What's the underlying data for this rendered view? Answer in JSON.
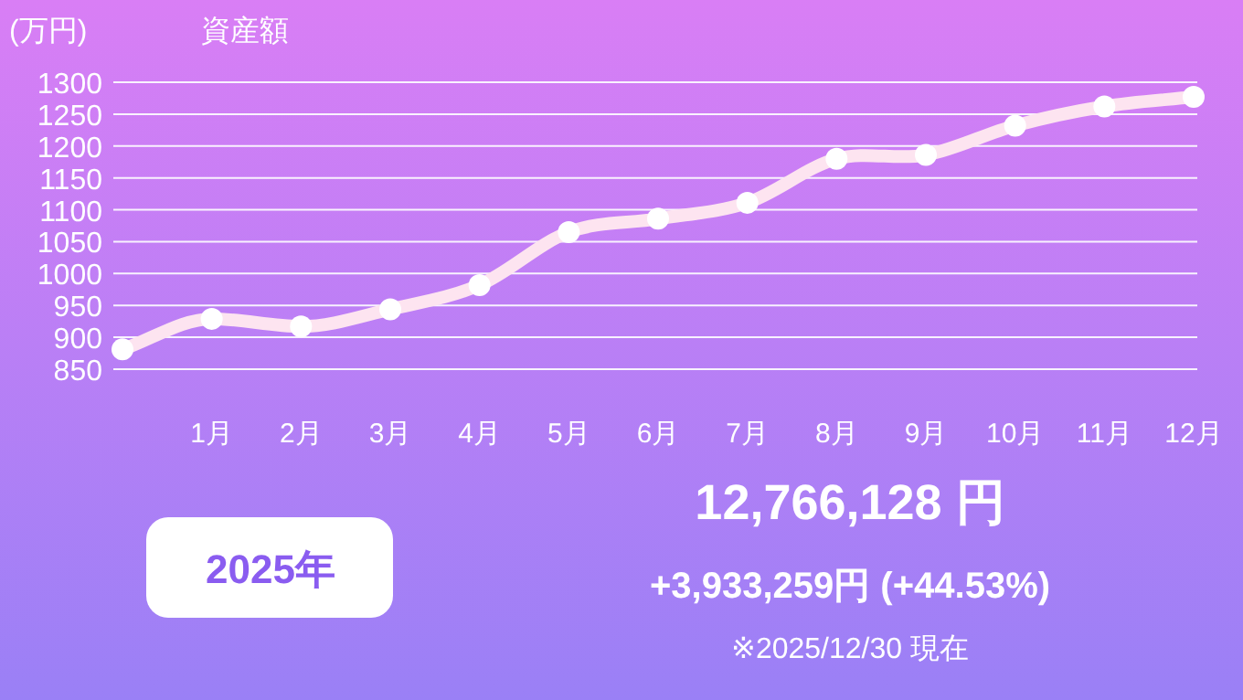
{
  "chart_data": {
    "type": "line",
    "title": "資産額",
    "ylabel": "(万円)",
    "categories": [
      null,
      "1月",
      "2月",
      "3月",
      "4月",
      "5月",
      "6月",
      "7月",
      "8月",
      "9月",
      "10月",
      "11月",
      "12月"
    ],
    "series": [
      {
        "color": "#fde4f0",
        "values": [
          881,
          929,
          917,
          944,
          982,
          1065,
          1086,
          1111,
          1180,
          1186,
          1232,
          1262,
          1277
        ]
      }
    ],
    "ylim": [
      850,
      1300
    ],
    "yticks": [
      850,
      900,
      950,
      1000,
      1050,
      1100,
      1150,
      1200,
      1250,
      1300
    ],
    "grid": "y",
    "marker": "circle",
    "line_style": "solid",
    "annotations": [
      "12,766,128 円",
      "+3,933,259円 (+44.53%)",
      "※2025/12/30 現在",
      "2025年"
    ]
  }
}
